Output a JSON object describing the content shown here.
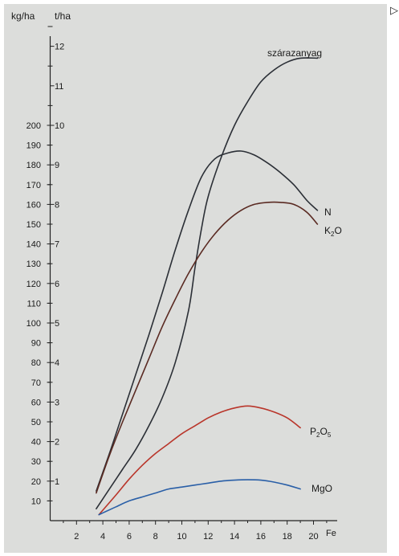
{
  "corner_glyph": "▷",
  "chart_data": {
    "type": "line",
    "y_axis_left_label": "kg/ha",
    "y_axis_right_label": "t/ha",
    "x_label": "Fe",
    "x_ticks": [
      "2",
      "4",
      "6",
      "8",
      "10",
      "12",
      "14",
      "16",
      "18",
      "20"
    ],
    "y_ticks_kgha": [
      "10",
      "20",
      "30",
      "40",
      "50",
      "60",
      "70",
      "80",
      "90",
      "100",
      "110",
      "120",
      "130",
      "140",
      "150",
      "160",
      "170",
      "180",
      "190",
      "200"
    ],
    "y_ticks_tha": [
      "1",
      "2",
      "3",
      "4",
      "5",
      "6",
      "7",
      "8",
      "9",
      "10",
      "11",
      "12"
    ],
    "xlim": [
      0,
      22
    ],
    "ylim_kgha": [
      0,
      240
    ],
    "grid": false,
    "series": [
      {
        "name": "szárazanyag",
        "color": "#2b2f36",
        "x": [
          3.5,
          4.5,
          5.5,
          6.5,
          7.5,
          8.5,
          9.5,
          10.5,
          11,
          11.5,
          12,
          13,
          14,
          15,
          16,
          17,
          18,
          19,
          20.3
        ],
        "y_tha": [
          0.3,
          0.8,
          1.3,
          1.8,
          2.4,
          3.1,
          4.0,
          5.3,
          6.4,
          7.4,
          8.2,
          9.2,
          10.0,
          10.6,
          11.1,
          11.4,
          11.6,
          11.7,
          11.7
        ]
      },
      {
        "name": "N",
        "color": "#2b2f36",
        "x": [
          3.5,
          4.5,
          5.5,
          6.5,
          7.5,
          8.5,
          9.5,
          10.5,
          11.5,
          12.5,
          13.5,
          14.5,
          15.5,
          16.5,
          17.5,
          18.5,
          19.5,
          20.3
        ],
        "y_kgha": [
          15,
          34,
          54,
          74,
          94,
          115,
          137,
          157,
          174,
          183,
          186,
          187,
          185,
          181,
          176,
          170,
          162,
          157
        ]
      },
      {
        "name": "K2O",
        "color": "#5a2a22",
        "x": [
          3.5,
          4.5,
          5.5,
          6.5,
          7.5,
          8.5,
          9.5,
          10.5,
          11.5,
          12.5,
          13.5,
          14.5,
          15.5,
          16.5,
          17.5,
          18.5,
          19.5,
          20.3
        ],
        "y_kgha": [
          14,
          33,
          50,
          66,
          82,
          98,
          112,
          125,
          136,
          145,
          152,
          157,
          160,
          161,
          161,
          160,
          156,
          150
        ]
      },
      {
        "name": "P2O5",
        "color": "#b9352a",
        "x": [
          3.7,
          5,
          6,
          7,
          8,
          9,
          10,
          11,
          12,
          13,
          14,
          15,
          16,
          17,
          18,
          19
        ],
        "y_kgha": [
          3,
          13,
          21,
          28,
          34,
          39,
          44,
          48,
          52,
          55,
          57,
          58,
          57,
          55,
          52,
          47
        ]
      },
      {
        "name": "MgO",
        "color": "#2a5fa7",
        "x": [
          3.7,
          5,
          6,
          7,
          8,
          9,
          10,
          11,
          12,
          13,
          14,
          15,
          16,
          17,
          18,
          19
        ],
        "y_kgha": [
          3,
          7,
          10,
          12,
          14,
          16,
          17,
          18,
          19,
          20,
          20.5,
          20.7,
          20.5,
          19.5,
          18,
          16
        ]
      }
    ],
    "labels": [
      {
        "text": "szárazanyag",
        "series": "szárazanyag"
      },
      {
        "text": "N",
        "series": "N"
      },
      {
        "text": "K2O",
        "series": "K2O",
        "main": "K",
        "sub": "2",
        "tail": "O"
      },
      {
        "text": "P2O5",
        "series": "P2O5",
        "main": "P",
        "sub": "2",
        "tail": "O",
        "sub2": "5"
      },
      {
        "text": "MgO",
        "series": "MgO"
      }
    ]
  }
}
